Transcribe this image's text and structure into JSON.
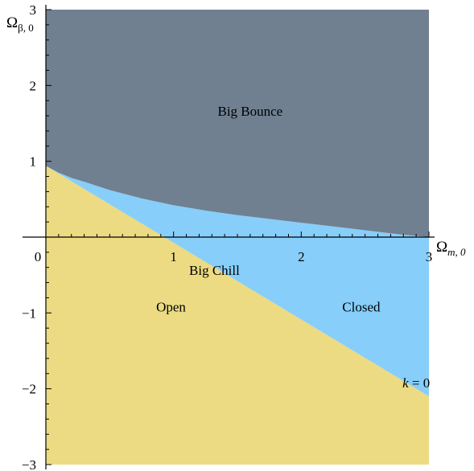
{
  "chart_data": {
    "type": "area",
    "xlabel": {
      "main": "Ω",
      "sub": "m, 0"
    },
    "ylabel": {
      "main": "Ω",
      "sub": "β, 0"
    },
    "xlim": [
      0,
      3
    ],
    "ylim": [
      -3,
      3
    ],
    "x_ticks": [
      {
        "value": 1,
        "label": "1"
      },
      {
        "value": 2,
        "label": "2"
      },
      {
        "value": 3,
        "label": "3"
      }
    ],
    "y_ticks": [
      {
        "value": -3,
        "label": "−3"
      },
      {
        "value": -2,
        "label": "−2"
      },
      {
        "value": -1,
        "label": "−1"
      },
      {
        "value": 1,
        "label": "1"
      },
      {
        "value": 2,
        "label": "2"
      },
      {
        "value": 3,
        "label": "3"
      }
    ],
    "origin_label": "0",
    "colors": {
      "big_bounce": "#708090",
      "big_chill_closed": "#87cefa",
      "open": "#ecdb82"
    },
    "boundaries": {
      "k_zero_line": {
        "x": [
          0,
          3
        ],
        "y": [
          0.94,
          -2.1
        ]
      },
      "bounce_boundary": {
        "x": [
          0,
          0.1,
          0.2,
          0.3,
          0.5,
          0.75,
          1.0,
          1.25,
          1.5,
          1.75,
          2.0,
          2.25,
          2.5,
          2.75,
          3.0
        ],
        "y": [
          0.94,
          0.85,
          0.78,
          0.73,
          0.62,
          0.51,
          0.42,
          0.35,
          0.29,
          0.24,
          0.19,
          0.14,
          0.09,
          0.04,
          0.0
        ]
      }
    },
    "annotations": [
      {
        "name": "big-bounce-label",
        "text": "Big Bounce",
        "x": 1.6,
        "y": 1.6
      },
      {
        "name": "big-chill-label",
        "text": "Big Chill",
        "x": 1.32,
        "y": -0.5
      },
      {
        "name": "open-label",
        "text": "Open",
        "x": 0.98,
        "y": -0.98
      },
      {
        "name": "closed-label",
        "text": "Closed",
        "x": 2.47,
        "y": -0.98
      },
      {
        "name": "k-zero-label",
        "text": "k = 0",
        "x": 2.9,
        "y": -1.98
      }
    ]
  }
}
